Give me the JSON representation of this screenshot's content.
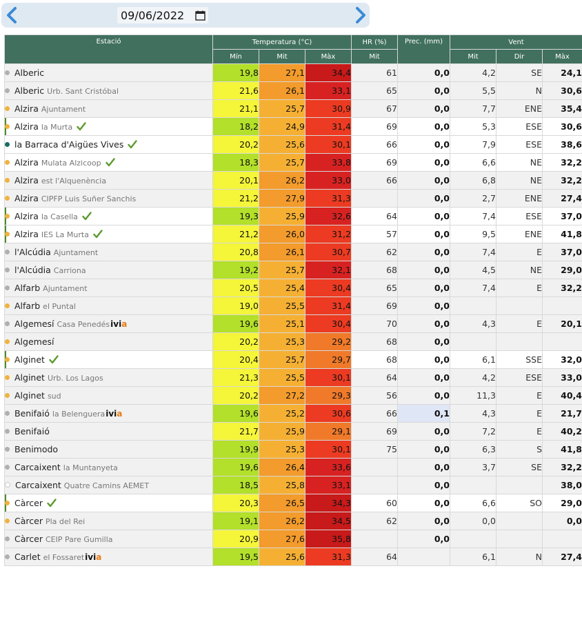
{
  "header": {
    "date_value": "09/06/2022",
    "prev_icon": "chevron-left-icon",
    "next_icon": "chevron-right-icon",
    "calendar_icon": "calendar-icon"
  },
  "table": {
    "col_station": "Estació",
    "group_temp": "Temperatura (°C)",
    "group_hr": "HR (%)",
    "group_prec": "Prec. (mm)",
    "group_vent": "Vent",
    "sub_min": "Mín",
    "sub_mit": "Mit",
    "sub_max": "Màx",
    "sub_hr_mit": "Mit",
    "sub_vent_mit": "Mit",
    "sub_vent_dir": "Dir",
    "sub_vent_max": "Màx"
  },
  "colors": {
    "header_bg": "#41705f",
    "dot_grey": "#b0b0b0",
    "dot_orange": "#f0b33c",
    "dot_teal": "#1b6d62",
    "check_green": "#5a9a2c",
    "ivia_a": "#e87a14"
  },
  "rows": [
    {
      "name": "Alberic",
      "sub": "",
      "dot": "grey",
      "check": false,
      "ivia": false,
      "mark": false,
      "shade": "grey",
      "tmin": "19,8",
      "tmid": "27,1",
      "tmax": "34,4",
      "cmin": "#b3e02a",
      "cmid": "#f39b2c",
      "cmax": "#c81a1a",
      "hr": "61",
      "prec": "0,0",
      "phl": false,
      "wmit": "4,2",
      "wdir": "SE",
      "wmax": "24,1"
    },
    {
      "name": "Alberic",
      "sub": "Urb. Sant Cristóbal",
      "dot": "grey",
      "check": false,
      "ivia": false,
      "mark": false,
      "shade": "grey",
      "tmin": "21,6",
      "tmid": "26,1",
      "tmax": "33,1",
      "cmin": "#f5f53a",
      "cmid": "#f39b2c",
      "cmax": "#d82222",
      "hr": "65",
      "prec": "0,0",
      "phl": false,
      "wmit": "5,5",
      "wdir": "N",
      "wmax": "30,6"
    },
    {
      "name": "Alzira",
      "sub": "Ajuntament",
      "dot": "orange",
      "check": false,
      "ivia": false,
      "mark": false,
      "shade": "grey",
      "tmin": "21,1",
      "tmid": "25,7",
      "tmax": "30,9",
      "cmin": "#f5f53a",
      "cmid": "#f5b034",
      "cmax": "#ec3b22",
      "hr": "67",
      "prec": "0,0",
      "phl": false,
      "wmit": "7,7",
      "wdir": "ENE",
      "wmax": "35,4"
    },
    {
      "name": "Alzira",
      "sub": "la Murta",
      "dot": "orange",
      "check": true,
      "ivia": false,
      "mark": true,
      "shade": "white",
      "tmin": "18,2",
      "tmid": "24,9",
      "tmax": "31,4",
      "cmin": "#b3e02a",
      "cmid": "#f5b034",
      "cmax": "#ec3b22",
      "hr": "69",
      "prec": "0,0",
      "phl": false,
      "wmit": "5,3",
      "wdir": "ESE",
      "wmax": "30,6"
    },
    {
      "name": "la Barraca d'Aigües Vives",
      "sub": "",
      "dot": "teal",
      "check": true,
      "ivia": false,
      "mark": false,
      "shade": "white",
      "tmin": "20,2",
      "tmid": "25,6",
      "tmax": "30,1",
      "cmin": "#f5f53a",
      "cmid": "#f5b034",
      "cmax": "#ec3b22",
      "hr": "66",
      "prec": "0,0",
      "phl": false,
      "wmit": "7,9",
      "wdir": "ESE",
      "wmax": "38,6"
    },
    {
      "name": "Alzira",
      "sub": "Mulata Alzicoop",
      "dot": "orange",
      "check": true,
      "ivia": false,
      "mark": false,
      "shade": "white",
      "tmin": "18,3",
      "tmid": "25,7",
      "tmax": "33,8",
      "cmin": "#b3e02a",
      "cmid": "#f5b034",
      "cmax": "#d82222",
      "hr": "69",
      "prec": "0,0",
      "phl": false,
      "wmit": "6,6",
      "wdir": "NE",
      "wmax": "32,2"
    },
    {
      "name": "Alzira",
      "sub": "est l'Alquenència",
      "dot": "orange",
      "check": false,
      "ivia": false,
      "mark": false,
      "shade": "grey",
      "tmin": "20,1",
      "tmid": "26,2",
      "tmax": "33,0",
      "cmin": "#f5f53a",
      "cmid": "#f39b2c",
      "cmax": "#d82222",
      "hr": "66",
      "prec": "0,0",
      "phl": false,
      "wmit": "6,8",
      "wdir": "NE",
      "wmax": "32,2"
    },
    {
      "name": "Alzira",
      "sub": "CIPFP Luis Suñer Sanchis",
      "dot": "orange",
      "check": false,
      "ivia": false,
      "mark": false,
      "shade": "grey",
      "tmin": "21,2",
      "tmid": "27,9",
      "tmax": "31,3",
      "cmin": "#f5f53a",
      "cmid": "#f39b2c",
      "cmax": "#ec3b22",
      "hr": "",
      "prec": "0,0",
      "phl": false,
      "wmit": "2,7",
      "wdir": "ENE",
      "wmax": "27,4"
    },
    {
      "name": "Alzira",
      "sub": "la Casella",
      "dot": "orange",
      "check": true,
      "ivia": false,
      "mark": true,
      "shade": "white",
      "tmin": "19,3",
      "tmid": "25,9",
      "tmax": "32,6",
      "cmin": "#b3e02a",
      "cmid": "#f5b034",
      "cmax": "#d82222",
      "hr": "64",
      "prec": "0,0",
      "phl": false,
      "wmit": "7,4",
      "wdir": "ESE",
      "wmax": "37,0"
    },
    {
      "name": "Alzira",
      "sub": "IES La Murta",
      "dot": "orange",
      "check": true,
      "ivia": false,
      "mark": true,
      "shade": "white",
      "tmin": "21,2",
      "tmid": "26,0",
      "tmax": "31,2",
      "cmin": "#f5f53a",
      "cmid": "#f39b2c",
      "cmax": "#ec3b22",
      "hr": "57",
      "prec": "0,0",
      "phl": false,
      "wmit": "9,5",
      "wdir": "ENE",
      "wmax": "41,8"
    },
    {
      "name": "l'Alcúdia",
      "sub": "Ajuntament",
      "dot": "grey",
      "check": false,
      "ivia": false,
      "mark": false,
      "shade": "grey",
      "tmin": "20,8",
      "tmid": "26,1",
      "tmax": "30,7",
      "cmin": "#f5f53a",
      "cmid": "#f39b2c",
      "cmax": "#ec3b22",
      "hr": "62",
      "prec": "0,0",
      "phl": false,
      "wmit": "7,4",
      "wdir": "E",
      "wmax": "37,0"
    },
    {
      "name": "l'Alcúdia",
      "sub": "Carriona",
      "dot": "grey",
      "check": false,
      "ivia": false,
      "mark": false,
      "shade": "grey",
      "tmin": "19,2",
      "tmid": "25,7",
      "tmax": "32,1",
      "cmin": "#b3e02a",
      "cmid": "#f5b034",
      "cmax": "#d82222",
      "hr": "68",
      "prec": "0,0",
      "phl": false,
      "wmit": "4,5",
      "wdir": "NE",
      "wmax": "29,0"
    },
    {
      "name": "Alfarb",
      "sub": "Ajuntament",
      "dot": "grey",
      "check": false,
      "ivia": false,
      "mark": false,
      "shade": "grey",
      "tmin": "20,5",
      "tmid": "25,4",
      "tmax": "30,4",
      "cmin": "#f5f53a",
      "cmid": "#f5b034",
      "cmax": "#ec3b22",
      "hr": "65",
      "prec": "0,0",
      "phl": false,
      "wmit": "7,4",
      "wdir": "E",
      "wmax": "32,2"
    },
    {
      "name": "Alfarb",
      "sub": "el Puntal",
      "dot": "orange",
      "check": false,
      "ivia": false,
      "mark": false,
      "shade": "grey",
      "tmin": "19,0",
      "tmid": "25,5",
      "tmax": "31,4",
      "cmin": "#f5f53a",
      "cmid": "#f5b034",
      "cmax": "#ec3b22",
      "hr": "69",
      "prec": "0,0",
      "phl": false,
      "wmit": "",
      "wdir": "",
      "wmax": ""
    },
    {
      "name": "Algemesí",
      "sub": "Casa Penedés",
      "dot": "grey",
      "check": false,
      "ivia": true,
      "mark": false,
      "shade": "grey",
      "tmin": "19,6",
      "tmid": "25,1",
      "tmax": "30,4",
      "cmin": "#b3e02a",
      "cmid": "#f5b034",
      "cmax": "#ec3b22",
      "hr": "70",
      "prec": "0,0",
      "phl": false,
      "wmit": "4,3",
      "wdir": "E",
      "wmax": "20,1"
    },
    {
      "name": "Algemesí",
      "sub": "",
      "dot": "orange",
      "check": false,
      "ivia": false,
      "mark": false,
      "shade": "grey",
      "tmin": "20,2",
      "tmid": "25,3",
      "tmax": "29,2",
      "cmin": "#f5f53a",
      "cmid": "#f5b034",
      "cmax": "#f07a2a",
      "hr": "68",
      "prec": "0,0",
      "phl": false,
      "wmit": "",
      "wdir": "",
      "wmax": ""
    },
    {
      "name": "Alginet",
      "sub": "",
      "dot": "orange",
      "check": true,
      "ivia": false,
      "mark": true,
      "shade": "white",
      "tmin": "20,4",
      "tmid": "25,7",
      "tmax": "29,7",
      "cmin": "#f5f53a",
      "cmid": "#f5b034",
      "cmax": "#f07a2a",
      "hr": "68",
      "prec": "0,0",
      "phl": false,
      "wmit": "6,1",
      "wdir": "SSE",
      "wmax": "32,0"
    },
    {
      "name": "Alginet",
      "sub": "Urb. Los Lagos",
      "dot": "orange",
      "check": false,
      "ivia": false,
      "mark": false,
      "shade": "grey",
      "tmin": "21,3",
      "tmid": "25,5",
      "tmax": "30,1",
      "cmin": "#f5f53a",
      "cmid": "#f5b034",
      "cmax": "#ec3b22",
      "hr": "64",
      "prec": "0,0",
      "phl": false,
      "wmit": "4,2",
      "wdir": "ESE",
      "wmax": "33,0"
    },
    {
      "name": "Alginet",
      "sub": "sud",
      "dot": "orange",
      "check": false,
      "ivia": false,
      "mark": false,
      "shade": "grey",
      "tmin": "20,2",
      "tmid": "27,2",
      "tmax": "29,3",
      "cmin": "#f5f53a",
      "cmid": "#f39b2c",
      "cmax": "#f07a2a",
      "hr": "56",
      "prec": "0,0",
      "phl": false,
      "wmit": "11,3",
      "wdir": "E",
      "wmax": "40,4"
    },
    {
      "name": "Benifaió",
      "sub": "la Belenguera",
      "dot": "grey",
      "check": false,
      "ivia": true,
      "mark": false,
      "shade": "grey",
      "tmin": "19,6",
      "tmid": "25,2",
      "tmax": "30,6",
      "cmin": "#b3e02a",
      "cmid": "#f5b034",
      "cmax": "#ec3b22",
      "hr": "66",
      "prec": "0,1",
      "phl": true,
      "wmit": "4,3",
      "wdir": "E",
      "wmax": "21,7"
    },
    {
      "name": "Benifaió",
      "sub": "",
      "dot": "grey",
      "check": false,
      "ivia": false,
      "mark": false,
      "shade": "grey",
      "tmin": "21,7",
      "tmid": "25,9",
      "tmax": "29,1",
      "cmin": "#f5f53a",
      "cmid": "#f5b034",
      "cmax": "#f07a2a",
      "hr": "69",
      "prec": "0,0",
      "phl": false,
      "wmit": "7,2",
      "wdir": "E",
      "wmax": "40,2"
    },
    {
      "name": "Benimodo",
      "sub": "",
      "dot": "grey",
      "check": false,
      "ivia": false,
      "mark": false,
      "shade": "grey",
      "tmin": "19,9",
      "tmid": "25,3",
      "tmax": "30,1",
      "cmin": "#b3e02a",
      "cmid": "#f5b034",
      "cmax": "#ec3b22",
      "hr": "75",
      "prec": "0,0",
      "phl": false,
      "wmit": "6,3",
      "wdir": "S",
      "wmax": "41,8"
    },
    {
      "name": "Carcaixent",
      "sub": "la Muntanyeta",
      "dot": "grey",
      "check": false,
      "ivia": false,
      "mark": false,
      "shade": "grey",
      "tmin": "19,6",
      "tmid": "26,4",
      "tmax": "33,6",
      "cmin": "#b3e02a",
      "cmid": "#f39b2c",
      "cmax": "#d82222",
      "hr": "",
      "prec": "0,0",
      "phl": false,
      "wmit": "3,7",
      "wdir": "SE",
      "wmax": "32,2"
    },
    {
      "name": "Carcaixent",
      "sub": "Quatre Camins AEMET",
      "dot": "hollow",
      "check": false,
      "ivia": false,
      "mark": false,
      "shade": "grey",
      "tmin": "18,5",
      "tmid": "25,8",
      "tmax": "33,1",
      "cmin": "#b3e02a",
      "cmid": "#f5b034",
      "cmax": "#d82222",
      "hr": "",
      "prec": "0,0",
      "phl": false,
      "wmit": "",
      "wdir": "",
      "wmax": "38,0"
    },
    {
      "name": "Càrcer",
      "sub": "",
      "dot": "orange",
      "check": true,
      "ivia": false,
      "mark": true,
      "shade": "white",
      "tmin": "20,3",
      "tmid": "26,5",
      "tmax": "34,3",
      "cmin": "#f5f53a",
      "cmid": "#f39b2c",
      "cmax": "#c81a1a",
      "hr": "60",
      "prec": "0,0",
      "phl": false,
      "wmit": "6,6",
      "wdir": "SO",
      "wmax": "29,0"
    },
    {
      "name": "Càrcer",
      "sub": "Pla del Rei",
      "dot": "orange",
      "check": false,
      "ivia": false,
      "mark": false,
      "shade": "grey",
      "tmin": "19,1",
      "tmid": "26,2",
      "tmax": "34,5",
      "cmin": "#b3e02a",
      "cmid": "#f39b2c",
      "cmax": "#c81a1a",
      "hr": "62",
      "prec": "0,0",
      "phl": false,
      "wmit": "0,0",
      "wdir": "",
      "wmax": "0,0"
    },
    {
      "name": "Càrcer",
      "sub": "CEIP Pare Gumilla",
      "dot": "grey",
      "check": false,
      "ivia": false,
      "mark": false,
      "shade": "grey",
      "tmin": "20,9",
      "tmid": "27,6",
      "tmax": "35,8",
      "cmin": "#f5f53a",
      "cmid": "#f39b2c",
      "cmax": "#c81a1a",
      "hr": "",
      "prec": "0,0",
      "phl": false,
      "wmit": "",
      "wdir": "",
      "wmax": ""
    },
    {
      "name": "Carlet",
      "sub": "el Fossaret",
      "dot": "grey",
      "check": false,
      "ivia": true,
      "mark": false,
      "shade": "grey",
      "tmin": "19,5",
      "tmid": "25,6",
      "tmax": "31,3",
      "cmin": "#b3e02a",
      "cmid": "#f5b034",
      "cmax": "#ec3b22",
      "hr": "64",
      "prec": "",
      "phl": false,
      "wmit": "6,1",
      "wdir": "N",
      "wmax": "27,4"
    }
  ]
}
